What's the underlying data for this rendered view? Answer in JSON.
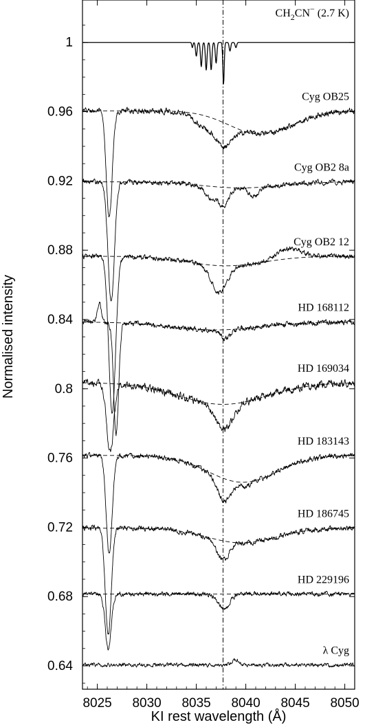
{
  "chart_data": {
    "type": "line",
    "xlabel": "KI rest wavelength (Å)",
    "ylabel": "Normalised intensity",
    "xlim": [
      8023.5,
      8051.0
    ],
    "ylim": [
      0.6265,
      1.0245
    ],
    "xticks": [
      8025,
      8030,
      8035,
      8040,
      8045,
      8050
    ],
    "yticks": [
      0.64,
      0.68,
      0.72,
      0.76,
      0.8,
      0.84,
      0.88,
      0.92,
      0.96,
      1
    ],
    "ytick_labels": [
      "0.64",
      "0.68",
      "0.72",
      "0.76",
      "0.8",
      "0.84",
      "0.88",
      "0.92",
      "0.96",
      "1"
    ],
    "vline_x": 8037.7,
    "grid": false,
    "series": [
      {
        "name": "CH2CN⁻ (2.7 K)",
        "label_main": "CH",
        "label_sub": "2",
        "label_rest": "CN",
        "label_sup": "−",
        "label_tail": " (2.7 K)",
        "baseline": 1.0,
        "noise": 0.0,
        "continuum_dips": [],
        "narrow_lines": [
          {
            "center": 8034.6,
            "depth": 0.003,
            "width": 0.06
          },
          {
            "center": 8035.0,
            "depth": 0.008,
            "width": 0.08
          },
          {
            "center": 8035.5,
            "depth": 0.014,
            "width": 0.08
          },
          {
            "center": 8036.0,
            "depth": 0.016,
            "width": 0.08
          },
          {
            "center": 8036.5,
            "depth": 0.016,
            "width": 0.08
          },
          {
            "center": 8037.0,
            "depth": 0.012,
            "width": 0.08
          },
          {
            "center": 8037.75,
            "depth": 0.024,
            "width": 0.07
          },
          {
            "center": 8038.4,
            "depth": 0.005,
            "width": 0.08
          },
          {
            "center": 8039.0,
            "depth": 0.003,
            "width": 0.08
          }
        ],
        "show_continuum": false
      },
      {
        "name": "Cyg OB25",
        "baseline": 0.9605,
        "continuum_slope": 0.0,
        "noise": 0.0017,
        "continuum_dips": [
          {
            "center": 8041.5,
            "depth": 0.0135,
            "width": 3.2
          }
        ],
        "narrow_lines": [
          {
            "center": 8026.2,
            "depth": 0.062,
            "width": 0.3
          },
          {
            "center": 8037.7,
            "depth": 0.014,
            "width": 0.9
          },
          {
            "center": 8035.5,
            "depth": 0.006,
            "width": 0.8
          }
        ],
        "show_continuum": true
      },
      {
        "name": "Cyg OB2 8a",
        "baseline": 0.9195,
        "noise": 0.0015,
        "continuum_dips": [
          {
            "center": 8039.5,
            "depth": 0.0035,
            "width": 4.0
          }
        ],
        "narrow_lines": [
          {
            "center": 8026.4,
            "depth": 0.07,
            "width": 0.32
          },
          {
            "center": 8036.5,
            "depth": 0.007,
            "width": 0.6
          },
          {
            "center": 8037.8,
            "depth": 0.01,
            "width": 0.5
          },
          {
            "center": 8040.8,
            "depth": 0.005,
            "width": 0.5
          }
        ],
        "show_continuum": true
      },
      {
        "name": "Cyg OB2 12",
        "baseline": 0.8765,
        "noise": 0.0016,
        "continuum_dips": [
          {
            "center": 8038.0,
            "depth": 0.0055,
            "width": 3.8
          }
        ],
        "narrow_lines": [
          {
            "center": 8026.5,
            "depth": 0.09,
            "width": 0.35
          },
          {
            "center": 8037.3,
            "depth": 0.015,
            "width": 0.8
          },
          {
            "center": 8044.3,
            "depth": -0.006,
            "width": 1.2
          }
        ],
        "show_continuum": true
      },
      {
        "name": "HD 168112",
        "baseline": 0.8385,
        "noise": 0.0016,
        "continuum_dips": [
          {
            "center": 8037.0,
            "depth": 0.0045,
            "width": 4.5
          }
        ],
        "narrow_lines": [
          {
            "center": 8026.9,
            "depth": 0.064,
            "width": 0.25
          },
          {
            "center": 8025.2,
            "depth": -0.012,
            "width": 0.2
          },
          {
            "center": 8038.0,
            "depth": 0.005,
            "width": 0.5
          }
        ],
        "show_continuum": true
      },
      {
        "name": "HD 169034",
        "baseline": 0.8035,
        "noise": 0.0022,
        "continuum_dips": [
          {
            "center": 8037.7,
            "depth": 0.0125,
            "width": 4.5
          }
        ],
        "narrow_lines": [
          {
            "center": 8026.3,
            "depth": 0.04,
            "width": 0.35
          },
          {
            "center": 8037.8,
            "depth": 0.015,
            "width": 0.8
          }
        ],
        "show_continuum": true
      },
      {
        "name": "HD 183143",
        "baseline": 0.7615,
        "noise": 0.0015,
        "continuum_dips": [
          {
            "center": 8039.7,
            "depth": 0.0155,
            "width": 3.5
          }
        ],
        "narrow_lines": [
          {
            "center": 8026.2,
            "depth": 0.058,
            "width": 0.3
          },
          {
            "center": 8037.8,
            "depth": 0.013,
            "width": 0.7
          },
          {
            "center": 8040.0,
            "depth": 0.003,
            "width": 0.4
          }
        ],
        "show_continuum": true
      },
      {
        "name": "HD 186745",
        "baseline": 0.7195,
        "noise": 0.0015,
        "continuum_dips": [
          {
            "center": 8039.6,
            "depth": 0.0085,
            "width": 3.5
          }
        ],
        "narrow_lines": [
          {
            "center": 8026.1,
            "depth": 0.062,
            "width": 0.3
          },
          {
            "center": 8037.7,
            "depth": 0.011,
            "width": 0.6
          }
        ],
        "show_continuum": true
      },
      {
        "name": "HD 229196",
        "baseline": 0.6815,
        "noise": 0.0013,
        "continuum_dips": [],
        "narrow_lines": [
          {
            "center": 8026.1,
            "depth": 0.032,
            "width": 0.3
          },
          {
            "center": 8037.8,
            "depth": 0.008,
            "width": 0.6
          }
        ],
        "show_continuum": true
      },
      {
        "name": "λ Cyg",
        "baseline": 0.6405,
        "noise": 0.0012,
        "continuum_dips": [],
        "narrow_lines": [
          {
            "center": 8039.0,
            "depth": -0.003,
            "width": 0.3
          }
        ],
        "show_continuum": false
      }
    ]
  }
}
